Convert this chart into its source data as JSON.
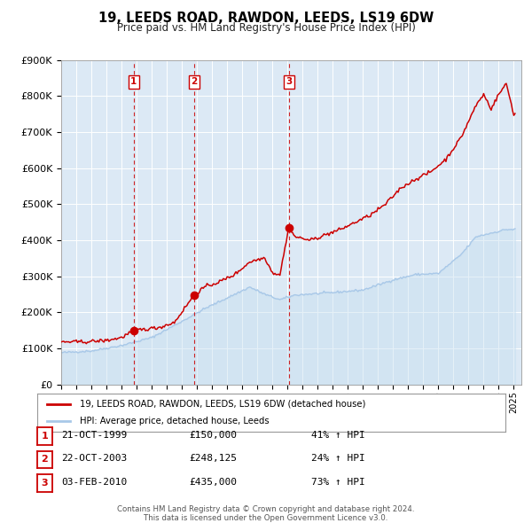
{
  "title": "19, LEEDS ROAD, RAWDON, LEEDS, LS19 6DW",
  "subtitle": "Price paid vs. HM Land Registry's House Price Index (HPI)",
  "bg_color": "#dce9f5",
  "hpi_color": "#a8c8e8",
  "hpi_fill_color": "#c8dff0",
  "price_color": "#cc0000",
  "grid_color": "#ffffff",
  "transactions": [
    {
      "label": "1",
      "date_num": 1999.8082,
      "price": 150000,
      "text": "21-OCT-1999",
      "price_str": "£150,000",
      "hpi_str": "41% ↑ HPI"
    },
    {
      "label": "2",
      "date_num": 2003.8082,
      "price": 248125,
      "text": "22-OCT-2003",
      "price_str": "£248,125",
      "hpi_str": "24% ↑ HPI"
    },
    {
      "label": "3",
      "date_num": 2010.0877,
      "price": 435000,
      "text": "03-FEB-2010",
      "price_str": "£435,000",
      "hpi_str": "73% ↑ HPI"
    }
  ],
  "ylim": [
    0,
    900000
  ],
  "yticks": [
    0,
    100000,
    200000,
    300000,
    400000,
    500000,
    600000,
    700000,
    800000,
    900000
  ],
  "xlim_start": 1995,
  "xlim_end": 2025.5,
  "legend_entry1": "19, LEEDS ROAD, RAWDON, LEEDS, LS19 6DW (detached house)",
  "legend_entry2": "HPI: Average price, detached house, Leeds",
  "footer1": "Contains HM Land Registry data © Crown copyright and database right 2024.",
  "footer2": "This data is licensed under the Open Government Licence v3.0.",
  "hpi_anchors": {
    "1995.0": 88000,
    "1997.0": 93000,
    "1999.0": 108000,
    "2001.0": 130000,
    "2003.0": 175000,
    "2004.5": 210000,
    "2007.5": 270000,
    "2008.5": 250000,
    "2009.5": 235000,
    "2010.5": 248000,
    "2013.0": 255000,
    "2015.0": 262000,
    "2017.0": 290000,
    "2018.5": 305000,
    "2020.0": 308000,
    "2021.5": 360000,
    "2022.5": 410000,
    "2023.5": 420000,
    "2024.5": 430000,
    "2025.0": 430000
  },
  "price_anchors": {
    "1995.0": 118000,
    "1996.5": 118000,
    "1998.0": 122000,
    "1999.0": 130000,
    "1999.808": 150000,
    "2000.5": 153000,
    "2001.5": 158000,
    "2002.5": 172000,
    "2003.808": 248125,
    "2004.5": 270000,
    "2005.5": 285000,
    "2006.5": 305000,
    "2007.5": 340000,
    "2008.5": 352000,
    "2009.0": 310000,
    "2009.5": 305000,
    "2010.088": 435000,
    "2010.5": 410000,
    "2011.5": 400000,
    "2012.5": 415000,
    "2013.5": 430000,
    "2014.5": 450000,
    "2015.5": 470000,
    "2016.5": 500000,
    "2017.5": 545000,
    "2018.5": 570000,
    "2019.5": 590000,
    "2020.5": 625000,
    "2021.5": 685000,
    "2022.0": 730000,
    "2022.5": 775000,
    "2023.0": 805000,
    "2023.5": 765000,
    "2024.0": 805000,
    "2024.5": 835000,
    "2025.0": 750000
  }
}
